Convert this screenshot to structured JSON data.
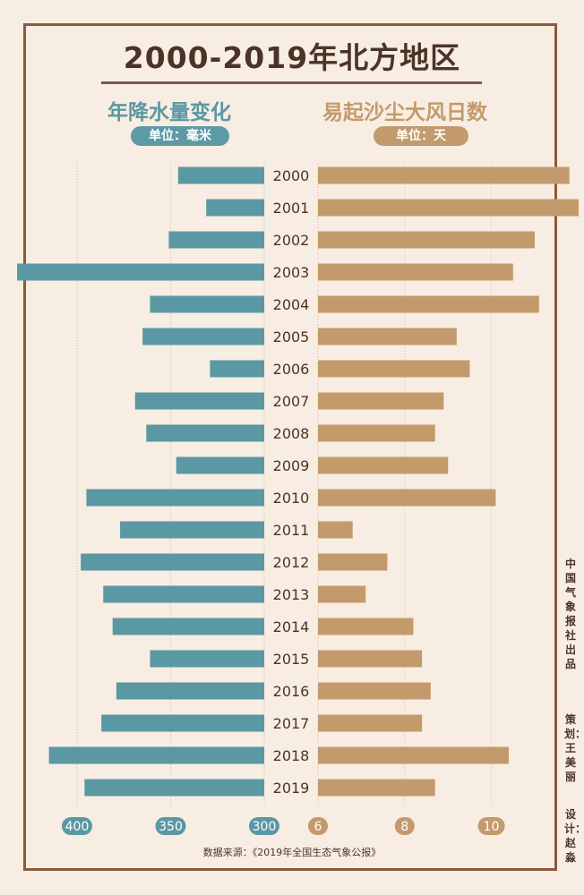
{
  "title": "2000-2019年北方地区",
  "left_title": "年降水量变化",
  "right_title": "易起沙尘大风日数",
  "left_unit": "单位：毫米",
  "right_unit": "单位：天",
  "source": "数据来源：《2019年全国生态气象公报》",
  "credits": [
    "中国气象报社出品",
    "策划：王美丽",
    "设计：赵淼"
  ],
  "colors": {
    "left": "#5a98a4",
    "right": "#c39a6c",
    "frame": "#8a5a3b",
    "background": "#f8ede2"
  },
  "chart_data": [
    {
      "type": "bar",
      "title": "年降水量变化",
      "unit": "单位：毫米",
      "categories": [
        "2000",
        "2001",
        "2002",
        "2003",
        "2004",
        "2005",
        "2006",
        "2007",
        "2008",
        "2009",
        "2010",
        "2011",
        "2012",
        "2013",
        "2014",
        "2015",
        "2016",
        "2017",
        "2018",
        "2019"
      ],
      "values": [
        346,
        331,
        351,
        432,
        361,
        365,
        329,
        369,
        363,
        347,
        395,
        377,
        398,
        386,
        381,
        361,
        379,
        387,
        415,
        396
      ],
      "xlim": [
        432,
        300
      ],
      "ticks": [
        400,
        350,
        300
      ],
      "orientation": "horizontal"
    },
    {
      "type": "bar",
      "title": "易起沙尘大风日数",
      "unit": "单位：天",
      "categories": [
        "2000",
        "2001",
        "2002",
        "2003",
        "2004",
        "2005",
        "2006",
        "2007",
        "2008",
        "2009",
        "2010",
        "2011",
        "2012",
        "2013",
        "2014",
        "2015",
        "2016",
        "2017",
        "2018",
        "2019"
      ],
      "values": [
        11.8,
        12.2,
        11.0,
        10.5,
        11.1,
        9.2,
        9.5,
        8.9,
        8.7,
        9.0,
        10.1,
        6.8,
        7.6,
        7.1,
        8.2,
        8.4,
        8.6,
        8.4,
        10.4,
        8.7
      ],
      "xlim": [
        6,
        12.2
      ],
      "ticks": [
        6,
        8,
        10
      ],
      "orientation": "horizontal"
    }
  ]
}
